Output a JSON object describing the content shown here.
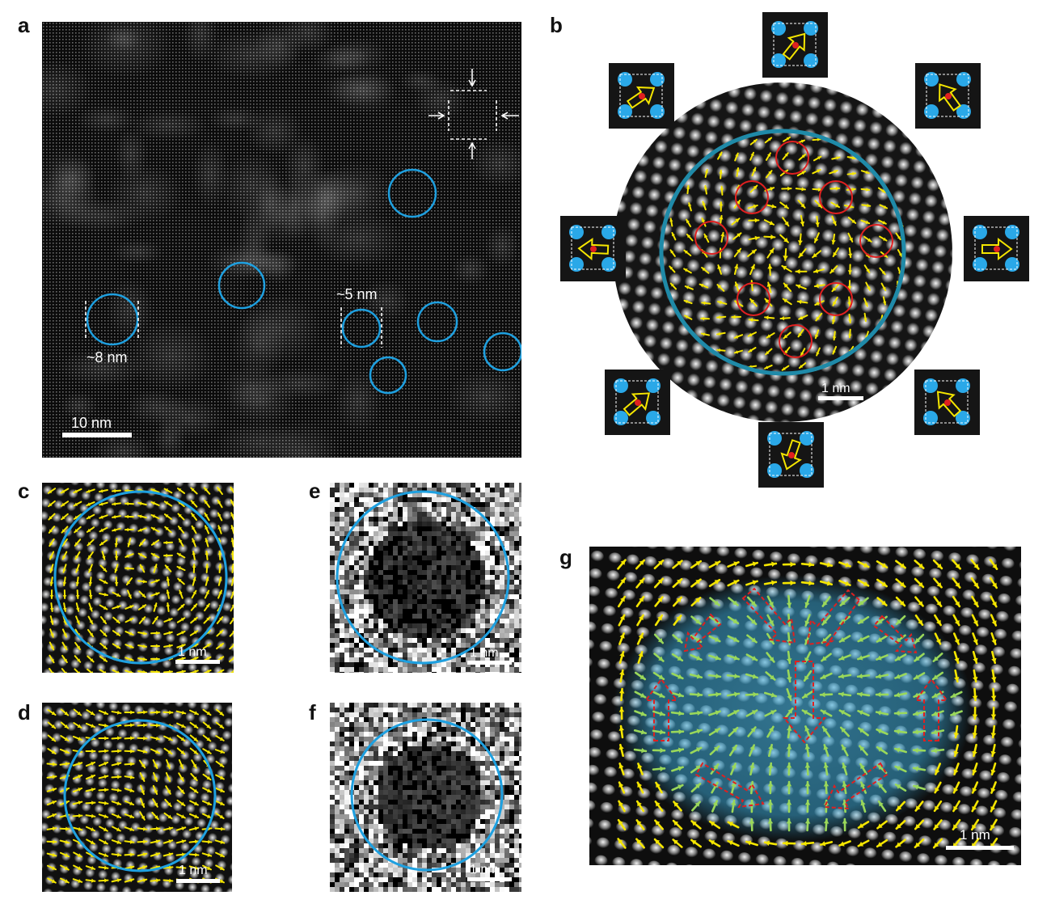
{
  "figure": {
    "panels": [
      {
        "id": "a",
        "label": "a",
        "scale_bar": "10 nm",
        "annotations": [
          "~5 nm",
          "~8 nm"
        ]
      },
      {
        "id": "b",
        "label": "b",
        "scale_bar": "1 nm"
      },
      {
        "id": "c",
        "label": "c",
        "scale_bar": "1 nm"
      },
      {
        "id": "d",
        "label": "d",
        "scale_bar": "1 nm"
      },
      {
        "id": "e",
        "label": "e",
        "scale_bar": "1 nm"
      },
      {
        "id": "f",
        "label": "f",
        "scale_bar": "1 nm"
      },
      {
        "id": "g",
        "label": "g",
        "scale_bar": "1 nm"
      }
    ],
    "colors": {
      "circle": "#1ea0e0",
      "arrow_yellow": "#f5e600",
      "arrow_green": "#9ad85a",
      "vortex_red": "#e02020",
      "dome_blue": "#3fa9d6",
      "background": "#000000"
    }
  }
}
